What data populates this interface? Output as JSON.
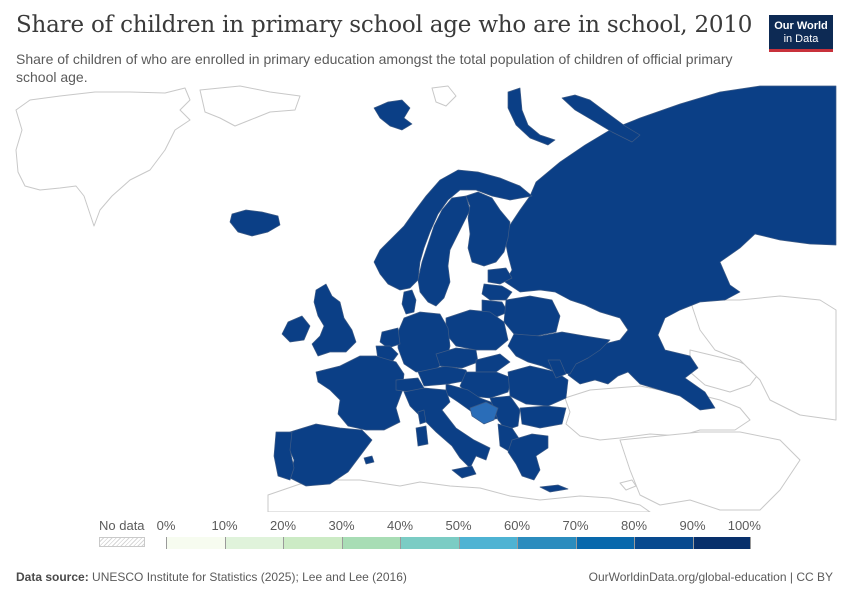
{
  "title": "Share of children in primary school age who are in school, 2010",
  "subtitle": "Share of children of who are enrolled in primary education amongst the total population of children of official primary school age.",
  "logo": {
    "line1": "Our World",
    "line2": "in Data"
  },
  "legend": {
    "no_data_label": "No data",
    "ticks": [
      "0%",
      "10%",
      "20%",
      "30%",
      "40%",
      "50%",
      "60%",
      "70%",
      "80%",
      "90%",
      "100%"
    ],
    "bin_colors": [
      "#f7fcf0",
      "#e0f3db",
      "#ccebc5",
      "#a8ddb5",
      "#7bccc4",
      "#4eb3d3",
      "#2b8cbe",
      "#0868ac",
      "#084a8f",
      "#08306b"
    ]
  },
  "map_colors": {
    "high": "#0b3f86",
    "bosnia": "#2a6db8",
    "no_data_fill": "#ffffff",
    "no_data_stroke": "#c8c8c8",
    "border": "#3d5b86"
  },
  "footer": {
    "source_label": "Data source:",
    "source_text": "UNESCO Institute for Statistics (2025); Lee and Lee (2016)",
    "url": "OurWorldinData.org/global-education | CC BY"
  }
}
